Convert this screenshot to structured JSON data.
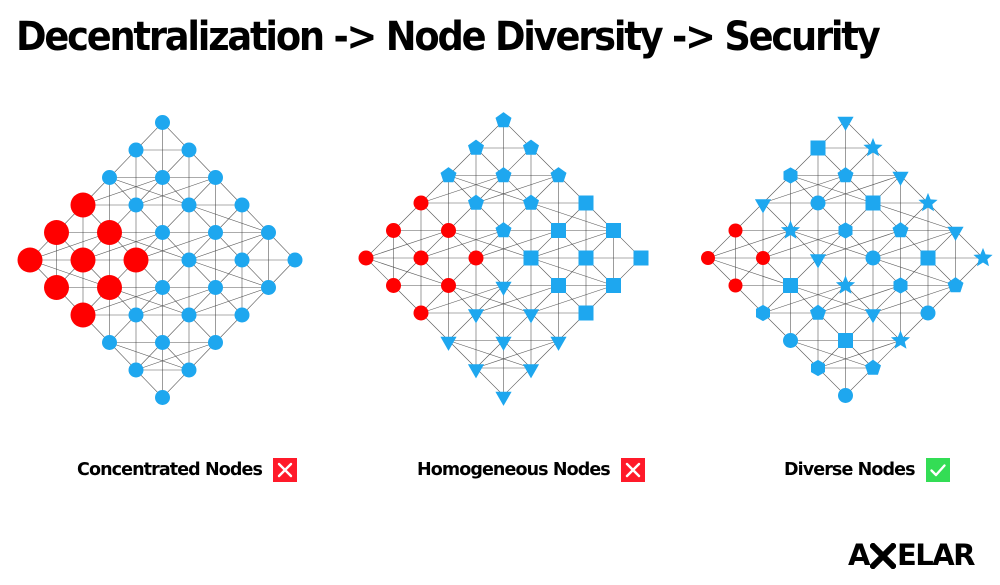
{
  "title": "Decentralization -> Node Diversity -> Security",
  "colors": {
    "red": "#ff0000",
    "blue": "#1ea7ef",
    "edge": "#3c3c3c",
    "fail": "#ff1a2a",
    "pass": "#33dd55"
  },
  "panels": [
    {
      "caption": "Concentrated Nodes",
      "status": "fail",
      "status_icon": "x-mark-icon"
    },
    {
      "caption": "Homogeneous Nodes",
      "status": "fail",
      "status_icon": "x-mark-icon"
    },
    {
      "caption": "Diverse Nodes",
      "status": "pass",
      "status_icon": "check-mark-icon"
    }
  ],
  "logo": {
    "before": "A",
    "after": "ELAR",
    "mark_icon": "x-mark-icon"
  }
}
